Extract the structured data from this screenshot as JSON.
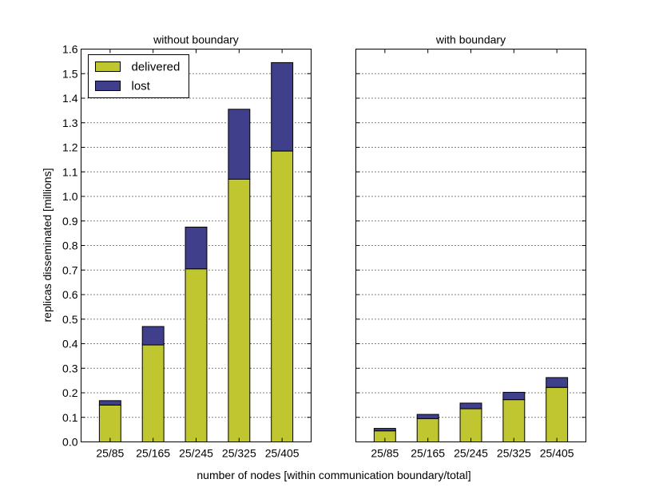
{
  "chart_data": {
    "type": "bar",
    "stacked": true,
    "ylabel": "replicas disseminated [millions]",
    "xlabel": "number of nodes [within communication boundary/total]",
    "ylim": [
      0,
      1.6
    ],
    "yticks": [
      "0.0",
      "0.1",
      "0.2",
      "0.3",
      "0.4",
      "0.5",
      "0.6",
      "0.7",
      "0.8",
      "0.9",
      "1.0",
      "1.1",
      "1.2",
      "1.3",
      "1.4",
      "1.5",
      "1.6"
    ],
    "grid": "horizontal dotted",
    "legend_position": "top-left",
    "colors": {
      "delivered": "#c0c62f",
      "lost": "#3f3f8c"
    },
    "subplots": [
      {
        "title": "without boundary",
        "categories": [
          "25/85",
          "25/165",
          "25/245",
          "25/325",
          "25/405"
        ],
        "series": [
          {
            "name": "delivered",
            "values": [
              0.15,
              0.395,
              0.705,
              1.07,
              1.185
            ]
          },
          {
            "name": "lost",
            "values": [
              0.018,
              0.075,
              0.17,
              0.285,
              0.36
            ]
          }
        ],
        "legend": [
          "delivered",
          "lost"
        ]
      },
      {
        "title": "with boundary",
        "categories": [
          "25/85",
          "25/165",
          "25/245",
          "25/325",
          "25/405"
        ],
        "series": [
          {
            "name": "delivered",
            "values": [
              0.045,
              0.095,
              0.135,
              0.172,
              0.222
            ]
          },
          {
            "name": "lost",
            "values": [
              0.01,
              0.017,
              0.023,
              0.03,
              0.04
            ]
          }
        ]
      }
    ]
  }
}
